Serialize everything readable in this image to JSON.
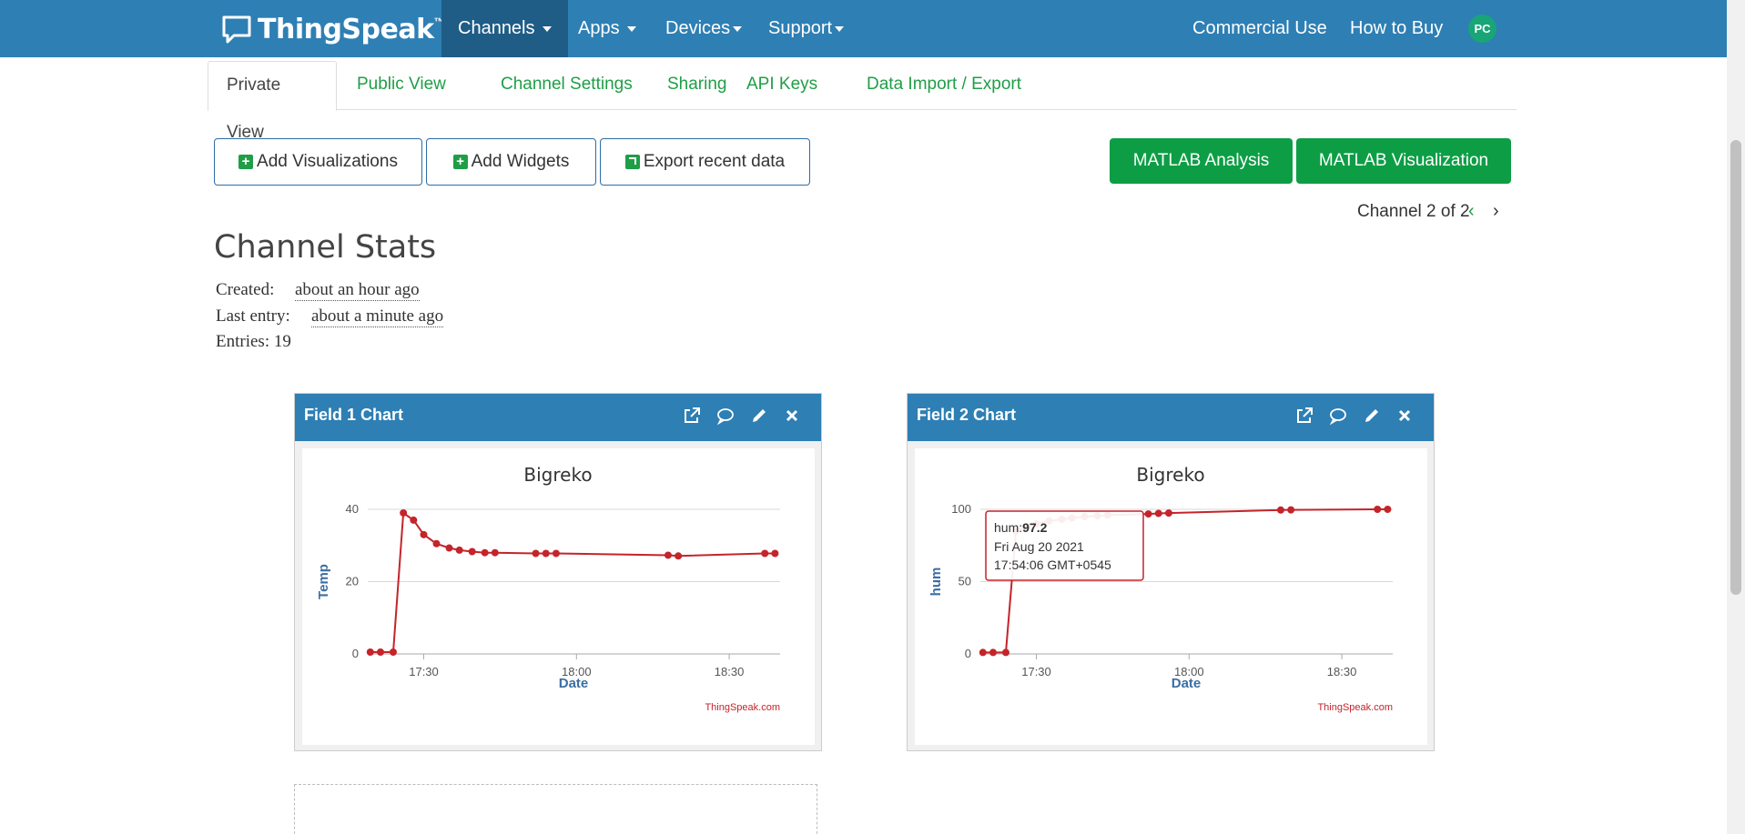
{
  "navbar": {
    "brand": "ThingSpeak",
    "brand_tm": "™",
    "items": [
      {
        "label": "Channels"
      },
      {
        "label": "Apps"
      },
      {
        "label": "Devices"
      },
      {
        "label": "Support"
      }
    ],
    "right_items": [
      {
        "label": "Commercial Use"
      },
      {
        "label": "How to Buy"
      }
    ],
    "avatar": "PC"
  },
  "tabs": [
    {
      "label": "Private View"
    },
    {
      "label": "Public View"
    },
    {
      "label": "Channel Settings"
    },
    {
      "label": "Sharing"
    },
    {
      "label": "API Keys"
    },
    {
      "label": "Data Import / Export"
    }
  ],
  "buttons": {
    "add_visualizations": "Add Visualizations",
    "add_widgets": "Add Widgets",
    "export_recent": "Export recent data",
    "matlab_analysis": "MATLAB Analysis",
    "matlab_visualization": "MATLAB Visualization"
  },
  "channel_nav": {
    "text": "Channel 2 of 2",
    "prev": "‹",
    "next": "›"
  },
  "stats": {
    "title": "Channel Stats",
    "created_label": "Created:",
    "created_value": "about an hour ago",
    "last_entry_label": "Last entry:",
    "last_entry_value": "about a minute ago",
    "entries": "Entries: 19"
  },
  "colors": {
    "navbar": "#2e7fb4",
    "accent_green": "#1f9e47",
    "series": "#c4242a"
  },
  "widgets": [
    {
      "title": "Field 1 Chart",
      "icons": [
        "external-link-icon",
        "comment-icon",
        "pencil-icon",
        "close-icon"
      ]
    },
    {
      "title": "Field 2 Chart",
      "icons": [
        "external-link-icon",
        "comment-icon",
        "pencil-icon",
        "close-icon"
      ]
    }
  ],
  "chart_data": [
    {
      "type": "line",
      "title": "Bigreko",
      "xlabel": "Date",
      "ylabel": "Temp",
      "x_ticks": [
        "17:30",
        "18:00",
        "18:30"
      ],
      "y_ticks": [
        0,
        20,
        40
      ],
      "ylim": [
        0,
        40
      ],
      "credit": "ThingSpeak.com",
      "series": [
        {
          "x": [
            "17:19:30",
            "17:21:30",
            "17:24:00",
            "17:26:00",
            "17:28:00",
            "17:30:00",
            "17:32:30",
            "17:35:00",
            "17:37:00",
            "17:39:30",
            "17:42:00",
            "17:44:00",
            "17:52:00",
            "17:54:00",
            "17:56:00",
            "18:18:00",
            "18:20:00",
            "18:37:00",
            "18:39:00"
          ],
          "values": [
            0.5,
            0.5,
            0.5,
            39,
            37,
            33,
            30.5,
            29.3,
            28.7,
            28.3,
            28,
            28,
            27.8,
            27.8,
            27.8,
            27.3,
            27.1,
            27.8,
            27.8
          ]
        }
      ]
    },
    {
      "type": "line",
      "title": "Bigreko",
      "xlabel": "Date",
      "ylabel": "hum",
      "x_ticks": [
        "17:30",
        "18:00",
        "18:30"
      ],
      "y_ticks": [
        0,
        50,
        100
      ],
      "ylim": [
        0,
        100
      ],
      "credit": "ThingSpeak.com",
      "series": [
        {
          "x": [
            "17:19:30",
            "17:21:30",
            "17:24:00",
            "17:26:00",
            "17:28:00",
            "17:30:00",
            "17:32:30",
            "17:35:00",
            "17:37:00",
            "17:39:30",
            "17:42:00",
            "17:44:00",
            "17:52:00",
            "17:54:00",
            "17:56:00",
            "18:18:00",
            "18:20:00",
            "18:37:00",
            "18:39:00"
          ],
          "values": [
            1,
            1,
            1,
            85,
            88,
            90,
            92,
            93,
            94,
            95,
            95.5,
            96,
            96.8,
            97.2,
            97.4,
            99.5,
            99.6,
            100,
            100
          ]
        }
      ],
      "tooltip": {
        "series": "hum:",
        "value": "97.2",
        "date": "Fri Aug 20 2021",
        "time": "17:54:06 GMT+0545"
      }
    }
  ]
}
